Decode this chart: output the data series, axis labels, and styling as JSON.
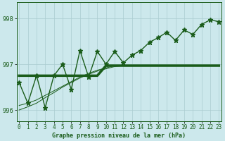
{
  "title": "Graphe pression niveau de la mer (hPa)",
  "hours": [
    0,
    1,
    2,
    3,
    4,
    5,
    6,
    7,
    8,
    9,
    10,
    11,
    12,
    13,
    14,
    15,
    16,
    17,
    18,
    19,
    20,
    21,
    22,
    23
  ],
  "pressure_spiky": [
    996.6,
    996.15,
    996.75,
    996.05,
    996.75,
    997.0,
    996.45,
    997.3,
    996.72,
    997.28,
    997.0,
    997.28,
    997.03,
    997.2,
    997.3,
    997.48,
    997.58,
    997.7,
    997.52,
    997.75,
    997.65,
    997.87,
    997.97,
    997.93
  ],
  "pressure_flat": [
    996.75,
    996.75,
    996.75,
    996.75,
    996.75,
    996.75,
    996.75,
    996.75,
    996.75,
    996.75,
    996.97,
    996.97,
    996.97,
    996.97,
    996.97,
    996.97,
    996.97,
    996.97,
    996.97,
    996.97,
    996.97,
    996.97,
    996.97,
    996.97
  ],
  "pressure_trend1": [
    996.1,
    996.15,
    996.22,
    996.32,
    996.42,
    996.52,
    996.62,
    996.72,
    996.8,
    996.87,
    996.92,
    996.97,
    996.97,
    996.97,
    996.97,
    996.97,
    996.97,
    996.97,
    996.97,
    996.97,
    996.97,
    996.97,
    996.97,
    996.97
  ],
  "pressure_trend2": [
    996.0,
    996.07,
    996.15,
    996.27,
    996.38,
    996.5,
    996.6,
    996.7,
    996.78,
    996.85,
    996.9,
    996.95,
    996.97,
    996.97,
    996.97,
    996.97,
    996.97,
    996.97,
    996.97,
    996.97,
    996.97,
    996.97,
    996.97,
    996.97
  ],
  "ylim": [
    995.75,
    998.35
  ],
  "yticks": [
    996,
    997,
    998
  ],
  "xlim": [
    -0.3,
    23.3
  ],
  "bg_color": "#cce8ec",
  "grid_color": "#aaccd0",
  "line_color": "#1a5c1a",
  "marker": "*",
  "flat_linewidth": 2.5,
  "spiky_linewidth": 1.0,
  "trend_linewidth": 0.7,
  "marker_size": 5,
  "xlabel_fontsize": 6,
  "tick_fontsize": 5.5,
  "ytick_fontsize": 6
}
